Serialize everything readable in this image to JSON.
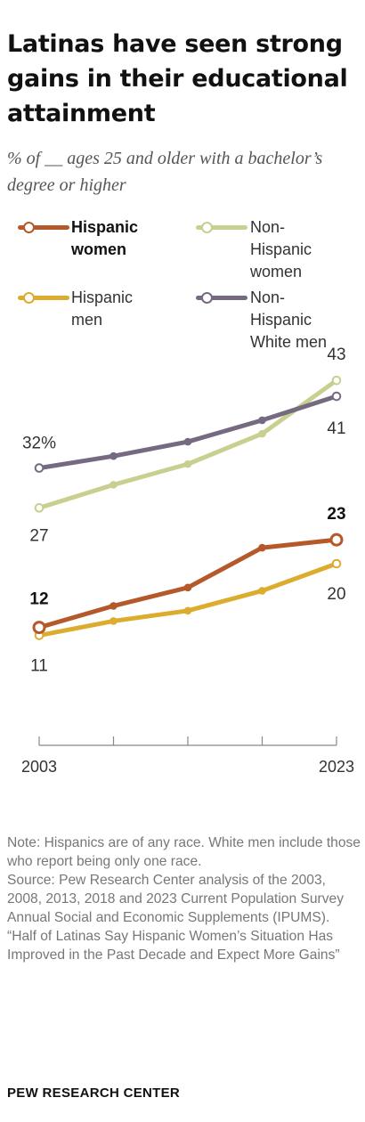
{
  "title": "Latinas have seen strong gains in their educational attainment",
  "subtitle": "% of __ ages 25 and older with a bachelor’s degree or higher",
  "chart_data": {
    "type": "line",
    "x": [
      2003,
      2008,
      2013,
      2018,
      2023
    ],
    "x_tick_labels": [
      "2003",
      "2023"
    ],
    "ylim": [
      0,
      45
    ],
    "grid": false,
    "legend": "top",
    "series": [
      {
        "name": "Hispanic women",
        "label_lines": [
          "Hispanic",
          "women"
        ],
        "values": [
          12,
          14.7,
          17,
          22,
          23
        ],
        "color": "#b5592a",
        "bold": true,
        "start_label": "12",
        "end_label": "23"
      },
      {
        "name": "Non-Hispanic women",
        "label_lines": [
          "Non-",
          "Hispanic",
          "women"
        ],
        "values": [
          27,
          29.9,
          32.5,
          36.3,
          43
        ],
        "color": "#c8cf8f",
        "bold": false,
        "start_label": "27",
        "end_label": "43"
      },
      {
        "name": "Hispanic men",
        "label_lines": [
          "Hispanic",
          "men"
        ],
        "values": [
          11,
          12.8,
          14.1,
          16.6,
          20
        ],
        "color": "#dbac2e",
        "bold": false,
        "start_label": "11",
        "end_label": "20"
      },
      {
        "name": "Non-Hispanic White men",
        "label_lines": [
          "Non-",
          "Hispanic",
          "White men"
        ],
        "values": [
          32,
          33.5,
          35.3,
          38,
          41
        ],
        "color": "#756a80",
        "bold": false,
        "start_label": "32%",
        "end_label": "41"
      }
    ]
  },
  "notes": [
    "Note: Hispanics are of any race. White men include those who report being only one race.",
    "Source: Pew Research Center analysis of the 2003, 2008, 2013, 2018 and 2023 Current Population Survey Annual Social and Economic Supplements (IPUMS).",
    "“Half of Latinas Say Hispanic Women’s Situation Has Improved in the Past Decade and Expect More Gains”"
  ],
  "footer": "PEW RESEARCH CENTER"
}
